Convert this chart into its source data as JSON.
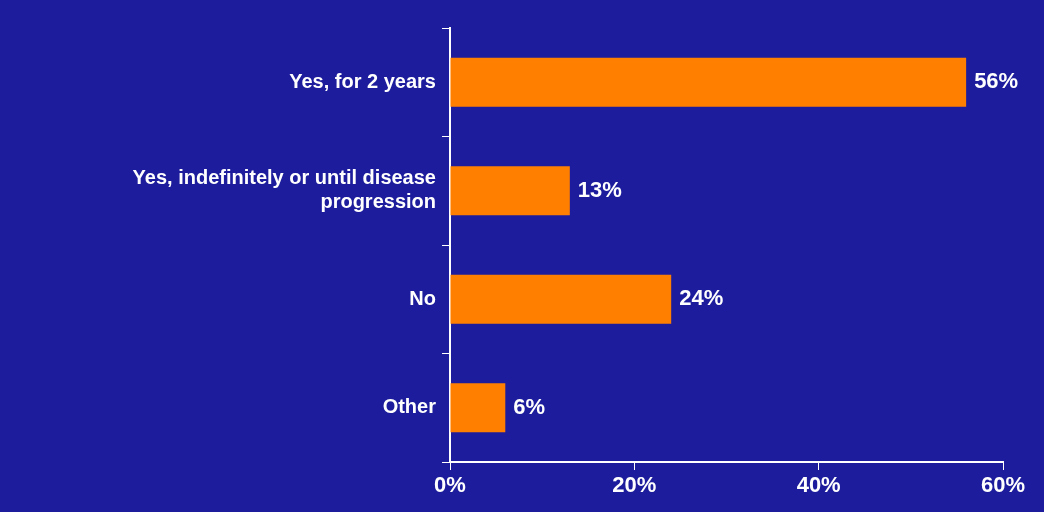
{
  "chart_data": {
    "type": "bar",
    "orientation": "horizontal",
    "categories": [
      "Yes, for 2 years",
      "Yes, indefinitely or until disease progression",
      "No",
      "Other"
    ],
    "values": [
      56,
      13,
      24,
      6
    ],
    "color": "#ff8000",
    "value_labels": [
      "56%",
      "13%",
      "24%",
      "6%"
    ],
    "xlim": [
      0,
      60
    ],
    "xticks": [
      {
        "value": 0,
        "label": "0%"
      },
      {
        "value": 20,
        "label": "20%"
      },
      {
        "value": 40,
        "label": "40%"
      },
      {
        "value": 60,
        "label": "60%"
      }
    ],
    "grid": false,
    "legend": false
  }
}
